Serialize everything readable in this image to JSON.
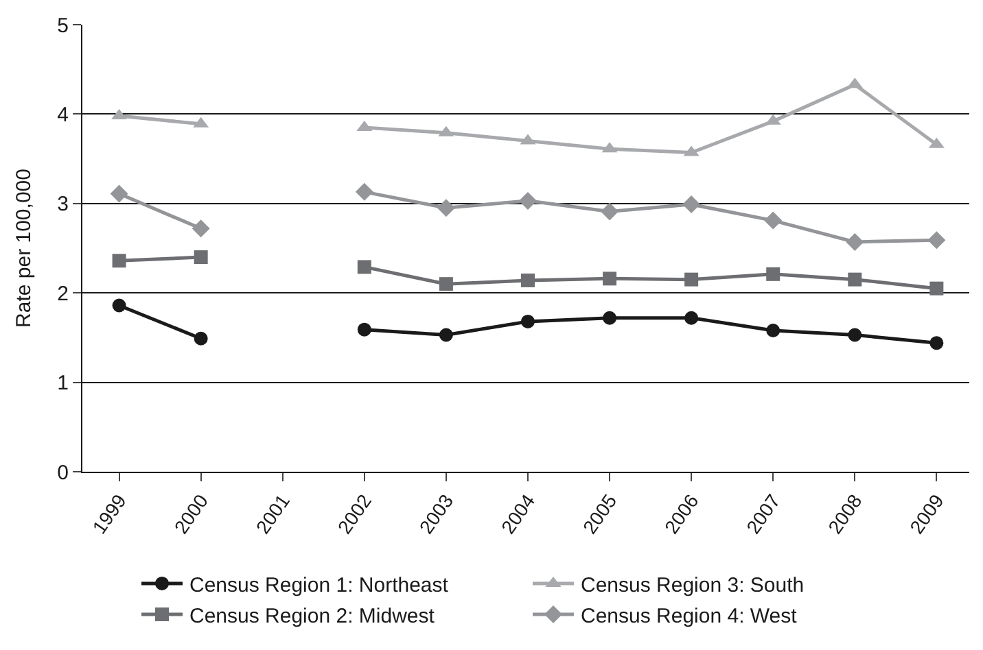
{
  "chart_data": {
    "type": "line",
    "ylabel": "Rate per 100,000",
    "categories": [
      "1999",
      "2000",
      "2001",
      "2002",
      "2003",
      "2004",
      "2005",
      "2006",
      "2007",
      "2008",
      "2009"
    ],
    "series": [
      {
        "name": "Census Region 1: Northeast",
        "color": "#1a1a1a",
        "marker": "circle",
        "values": [
          1.86,
          1.49,
          null,
          1.59,
          1.53,
          1.68,
          1.72,
          1.72,
          1.58,
          1.53,
          1.44
        ]
      },
      {
        "name": "Census Region 2: Midwest",
        "color": "#6d6e71",
        "marker": "square",
        "values": [
          2.36,
          2.4,
          null,
          2.29,
          2.1,
          2.14,
          2.16,
          2.15,
          2.21,
          2.15,
          2.05
        ]
      },
      {
        "name": "Census Region 3: South",
        "color": "#a7a9ac",
        "marker": "triangle",
        "values": [
          3.98,
          3.89,
          null,
          3.85,
          3.79,
          3.7,
          3.61,
          3.57,
          3.92,
          4.33,
          3.66
        ]
      },
      {
        "name": "Census Region 4: West",
        "color": "#939598",
        "marker": "diamond",
        "values": [
          3.11,
          2.72,
          null,
          3.13,
          2.95,
          3.03,
          2.91,
          2.99,
          2.81,
          2.57,
          2.59
        ]
      }
    ],
    "ylim": [
      0,
      5
    ],
    "yticks": [
      0,
      1,
      2,
      3,
      4,
      5
    ],
    "grid": "y",
    "legend": "bottom",
    "line_style": "solid"
  }
}
